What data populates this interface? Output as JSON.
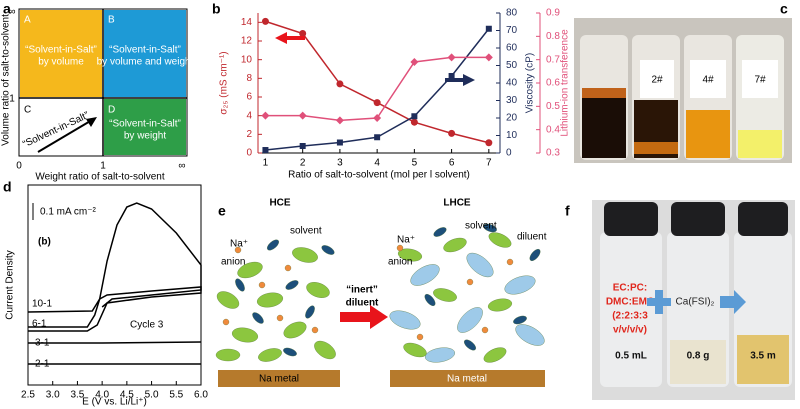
{
  "panel_a": {
    "label": "a",
    "quadrants": [
      {
        "letter": "A",
        "lines": [
          "“Solvent-in-Salt”",
          "by volume"
        ]
      },
      {
        "letter": "B",
        "lines": [
          "“Solvent-in-Salt”",
          "by volume and weight"
        ]
      },
      {
        "letter": "C",
        "lines": [
          "“Solvent-in-Salt”"
        ]
      },
      {
        "letter": "D",
        "lines": [
          "“Solvent-in-Salt”",
          "by weight"
        ]
      }
    ],
    "ylabel": "Volume ratio of salt-to-solvent",
    "xlabel": "Weight ratio of salt-to-solvent",
    "yticks": [
      "∞",
      "1"
    ],
    "xticks": [
      "0",
      "1",
      "∞"
    ]
  },
  "chart_data": [
    {
      "type": "line",
      "label": "b",
      "x": [
        1,
        2,
        3,
        4,
        5,
        6,
        7
      ],
      "xlim": [
        0.8,
        7.3
      ],
      "xticks": [
        1,
        2,
        3,
        4,
        5,
        6,
        7
      ],
      "xlabel": "Ratio of salt-to-solvent (mol per l solvent)",
      "ylabel": "σ₂₅ (mS cm⁻¹)",
      "y2label": "Viscosity (cP)",
      "y3label": "Lithium-ion transference",
      "ylim": [
        0,
        15
      ],
      "yticks": [
        0,
        2,
        4,
        6,
        8,
        10,
        12,
        14
      ],
      "y2lim": [
        0,
        80
      ],
      "y2ticks": [
        0,
        10,
        20,
        30,
        40,
        50,
        60,
        70,
        80
      ],
      "y3lim": [
        0.3,
        0.9
      ],
      "y3ticks": [
        0.3,
        0.4,
        0.5,
        0.6,
        0.7,
        0.8,
        0.9
      ],
      "series": [
        {
          "color": "#c0272d",
          "marker": "circle",
          "values": [
            14.1,
            12.8,
            7.4,
            5.4,
            3.3,
            2.1,
            1.1
          ]
        },
        {
          "color": "#1f2d5a",
          "marker": "square",
          "axis": "y2",
          "values": [
            1.7,
            4,
            6,
            9,
            21,
            44,
            71
          ]
        },
        {
          "color": "#e0507a",
          "marker": "diamond",
          "axis": "y3",
          "values": [
            0.46,
            0.46,
            0.44,
            0.45,
            0.69,
            0.71,
            0.71
          ]
        }
      ]
    },
    {
      "type": "line",
      "label": "d",
      "xlim": [
        2.5,
        6.0
      ],
      "xticks": [
        2.5,
        {
          "value": 3,
          "label": "3.0"
        },
        3.5,
        {
          "value": 4,
          "label": "4.0"
        },
        4.5,
        {
          "value": 5,
          "label": "5.0"
        },
        5.5,
        {
          "value": 6,
          "label": "6.0"
        }
      ],
      "ylim": [
        0,
        10
      ],
      "xlabel": "E (V vs. Li/Li⁺)",
      "ylabel": "Current Density",
      "annotations": [
        "0.1 mA cm⁻²",
        "(b)",
        "Cycle 3"
      ],
      "series": [
        {
          "name": "10-1",
          "color": "#000000",
          "x": [
            2.5,
            3.8,
            3.95,
            4.1,
            4.3,
            4.5,
            4.7,
            5.0,
            5.5,
            6.0,
            6.0,
            5.0,
            4.2,
            4.0
          ],
          "values": [
            3.65,
            3.7,
            4.3,
            6.2,
            8.0,
            8.9,
            9.1,
            8.8,
            7.6,
            6.0,
            4.75,
            4.5,
            4.3,
            3.9
          ]
        },
        {
          "name": "6-1",
          "color": "#000000",
          "x": [
            2.5,
            3.7,
            3.85,
            3.95,
            4.1,
            5.0,
            6.0,
            6.0,
            5.0,
            4.1,
            3.9,
            3.7,
            2.5
          ],
          "values": [
            2.9,
            2.9,
            3.5,
            4.3,
            4.5,
            4.7,
            4.9,
            4.6,
            4.4,
            4.1,
            3.0,
            2.7,
            2.7
          ]
        },
        {
          "name": "3-1",
          "color": "#000000",
          "x": [
            2.5,
            4.0,
            6.0
          ],
          "values": [
            2.1,
            2.1,
            2.15
          ]
        },
        {
          "name": "2-1",
          "color": "#000000",
          "x": [
            2.5,
            6.0
          ],
          "values": [
            1.05,
            1.05
          ]
        }
      ]
    }
  ],
  "panel_c": {
    "label": "c",
    "vial_labels": [
      "2#",
      "4#",
      "7#"
    ]
  },
  "panel_e": {
    "label": "e",
    "left_title": "HCE",
    "right_title": "LHCE",
    "left_species": [
      "solvent",
      "Na⁺",
      "anion"
    ],
    "right_species": [
      "solvent",
      "Na⁺",
      "diluent",
      "anion"
    ],
    "arrow_lines": [
      "“inert”",
      "diluent"
    ],
    "substrate": [
      "Na metal",
      "Na metal"
    ]
  },
  "panel_f": {
    "label": "f",
    "solvent_lines": [
      "EC:PC:",
      "DMC:EMC",
      "(2:2:3:3",
      "v/v/v/v)"
    ],
    "salt": "Ca(FSI)₂",
    "amounts": [
      "0.5 mL",
      "0.8 g",
      "3.5 m"
    ]
  }
}
